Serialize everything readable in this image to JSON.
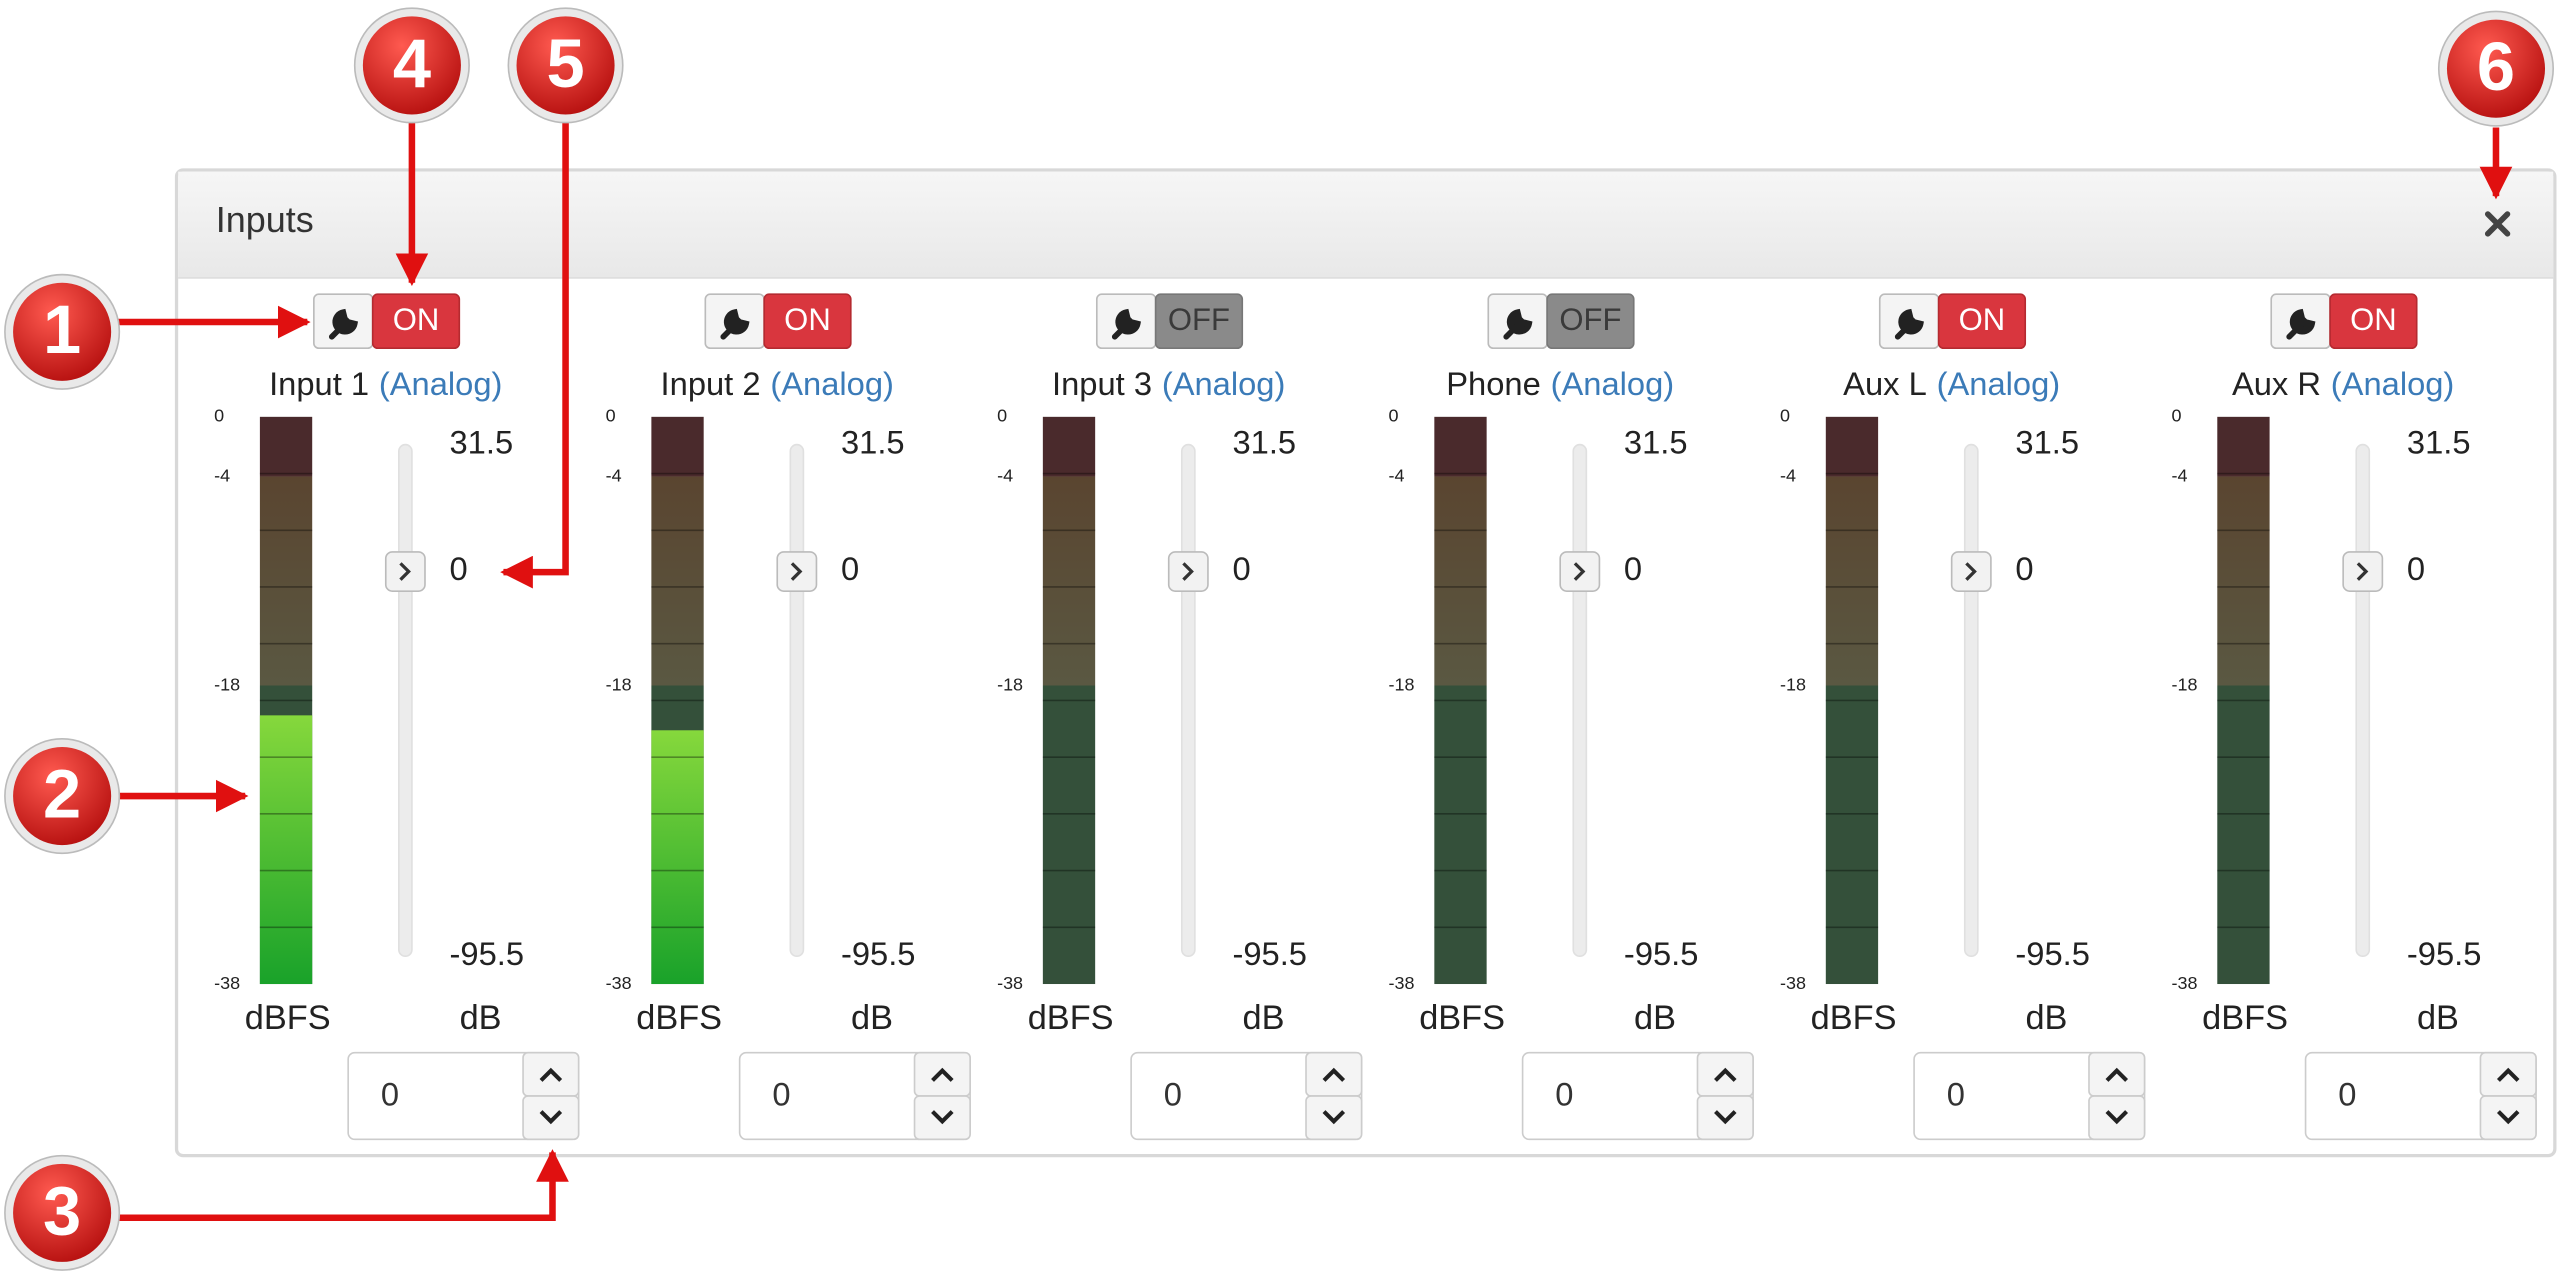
{
  "panel": {
    "title": "Inputs"
  },
  "meter_scale": [
    0,
    -4,
    -18,
    -38
  ],
  "meter_unit": "dBFS",
  "gain_unit": "dB",
  "gain_max": 31.5,
  "gain_min": -95.5,
  "channels": [
    {
      "name": "Input 1",
      "type": "(Analog)",
      "state": "ON",
      "enabled": true,
      "level": -20,
      "gain": 0
    },
    {
      "name": "Input 2",
      "type": "(Analog)",
      "state": "ON",
      "enabled": true,
      "level": -21,
      "gain": 0
    },
    {
      "name": "Input 3",
      "type": "(Analog)",
      "state": "OFF",
      "enabled": false,
      "level": null,
      "gain": 0
    },
    {
      "name": "Phone",
      "type": "(Analog)",
      "state": "OFF",
      "enabled": false,
      "level": null,
      "gain": 0
    },
    {
      "name": "Aux L",
      "type": "(Analog)",
      "state": "ON",
      "enabled": true,
      "level": null,
      "gain": 0
    },
    {
      "name": "Aux R",
      "type": "(Analog)",
      "state": "ON",
      "enabled": true,
      "level": null,
      "gain": 0
    }
  ],
  "callouts": [
    "1",
    "2",
    "3",
    "4",
    "5",
    "6"
  ]
}
